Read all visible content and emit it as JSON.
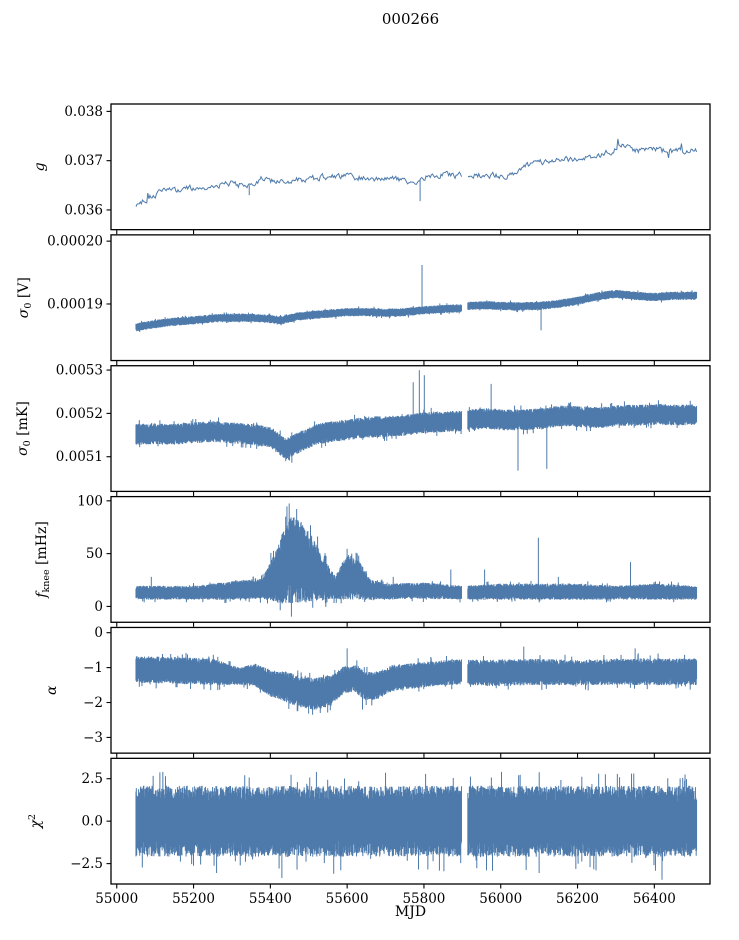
{
  "figure": {
    "title": "000266",
    "xlabel": "MJD",
    "xlim": [
      54985,
      56545
    ],
    "xticks": [
      55000,
      55200,
      55400,
      55600,
      55800,
      56000,
      56200,
      56400
    ],
    "xtick_labels": [
      "55000",
      "55200",
      "55400",
      "55600",
      "55800",
      "56000",
      "56200",
      "56400"
    ],
    "x_range": [
      55050,
      56510
    ],
    "gap": [
      55898,
      55914
    ],
    "line_color": "#4d7aab",
    "axis_color": "#000000",
    "background": "#ffffff"
  },
  "chart_data": [
    {
      "name": "g",
      "type": "line",
      "style": "line",
      "ylabel": "g",
      "ylabel_parts": [
        {
          "t": "g",
          "s": "i"
        }
      ],
      "ylim": [
        0.0356,
        0.03815
      ],
      "yticks": [
        0.036,
        0.037,
        0.038
      ],
      "ytick_labels": [
        "0.036",
        "0.037",
        "0.038"
      ],
      "noise": 6e-05,
      "trend": [
        [
          55050,
          0.03612
        ],
        [
          55080,
          0.03622
        ],
        [
          55120,
          0.03638
        ],
        [
          55160,
          0.03641
        ],
        [
          55200,
          0.03645
        ],
        [
          55250,
          0.03649
        ],
        [
          55300,
          0.03654
        ],
        [
          55340,
          0.03648
        ],
        [
          55380,
          0.03665
        ],
        [
          55420,
          0.03655
        ],
        [
          55460,
          0.0366
        ],
        [
          55500,
          0.03662
        ],
        [
          55540,
          0.03668
        ],
        [
          55580,
          0.03669
        ],
        [
          55620,
          0.03667
        ],
        [
          55660,
          0.03664
        ],
        [
          55700,
          0.03662
        ],
        [
          55740,
          0.03663
        ],
        [
          55775,
          0.03657
        ],
        [
          55810,
          0.03668
        ],
        [
          55845,
          0.03671
        ],
        [
          55880,
          0.0367
        ],
        [
          55920,
          0.03671
        ],
        [
          55960,
          0.0367
        ],
        [
          56000,
          0.03669
        ],
        [
          56040,
          0.03671
        ],
        [
          56070,
          0.03692
        ],
        [
          56110,
          0.03698
        ],
        [
          56150,
          0.037
        ],
        [
          56200,
          0.03705
        ],
        [
          56240,
          0.0371
        ],
        [
          56280,
          0.03716
        ],
        [
          56320,
          0.03733
        ],
        [
          56355,
          0.0372
        ],
        [
          56390,
          0.03726
        ],
        [
          56430,
          0.03719
        ],
        [
          56470,
          0.03721
        ],
        [
          56510,
          0.0372
        ]
      ],
      "spikes": [
        [
          55345,
          0.0363
        ],
        [
          55790,
          0.03618
        ]
      ]
    },
    {
      "name": "sigma0-volt",
      "type": "line",
      "style": "band",
      "ylabel": "sigma_0 [V]",
      "ylabel_parts": [
        {
          "t": "σ",
          "s": "i"
        },
        {
          "t": "0",
          "s": "sub"
        },
        {
          "t": " [V]",
          "s": "n"
        }
      ],
      "ylim": [
        0.000181,
        0.000201
      ],
      "yticks": [
        0.00019,
        0.0002
      ],
      "ytick_labels": [
        "0.00019",
        "0.00020"
      ],
      "noise": 6e-07,
      "trend": [
        [
          55050,
          0.0001863
        ],
        [
          55100,
          0.0001868
        ],
        [
          55150,
          0.0001872
        ],
        [
          55200,
          0.0001874
        ],
        [
          55250,
          0.0001877
        ],
        [
          55300,
          0.0001878
        ],
        [
          55350,
          0.0001878
        ],
        [
          55400,
          0.0001876
        ],
        [
          55430,
          0.0001874
        ],
        [
          55470,
          0.000188
        ],
        [
          55520,
          0.0001883
        ],
        [
          55560,
          0.0001885
        ],
        [
          55600,
          0.0001887
        ],
        [
          55650,
          0.0001887
        ],
        [
          55700,
          0.0001886
        ],
        [
          55750,
          0.0001887
        ],
        [
          55800,
          0.000189
        ],
        [
          55850,
          0.0001892
        ],
        [
          55895,
          0.0001893
        ],
        [
          55915,
          0.0001897
        ],
        [
          55960,
          0.0001898
        ],
        [
          56000,
          0.0001897
        ],
        [
          56050,
          0.0001896
        ],
        [
          56100,
          0.0001897
        ],
        [
          56150,
          0.00019
        ],
        [
          56200,
          0.0001905
        ],
        [
          56250,
          0.0001912
        ],
        [
          56300,
          0.0001916
        ],
        [
          56350,
          0.0001913
        ],
        [
          56400,
          0.0001911
        ],
        [
          56450,
          0.0001913
        ],
        [
          56510,
          0.0001913
        ]
      ],
      "spikes": [
        [
          55795,
          0.0001962
        ],
        [
          56105,
          0.0001858
        ]
      ]
    },
    {
      "name": "sigma0-mk",
      "type": "line",
      "style": "band",
      "ylabel": "sigma_0 [mK]",
      "ylabel_parts": [
        {
          "t": "σ",
          "s": "i"
        },
        {
          "t": "0",
          "s": "sub"
        },
        {
          "t": " [mK]",
          "s": "n"
        }
      ],
      "ylim": [
        0.00502,
        0.00531
      ],
      "yticks": [
        0.0051,
        0.0052,
        0.0053
      ],
      "ytick_labels": [
        "0.0051",
        "0.0052",
        "0.0053"
      ],
      "noise": 2.2e-05,
      "trend": [
        [
          55050,
          0.005152
        ],
        [
          55150,
          0.005152
        ],
        [
          55250,
          0.005158
        ],
        [
          55300,
          0.005155
        ],
        [
          55350,
          0.005152
        ],
        [
          55400,
          0.005145
        ],
        [
          55440,
          0.005118
        ],
        [
          55480,
          0.005135
        ],
        [
          55520,
          0.005152
        ],
        [
          55560,
          0.005158
        ],
        [
          55600,
          0.005162
        ],
        [
          55650,
          0.005168
        ],
        [
          55700,
          0.00517
        ],
        [
          55750,
          0.005172
        ],
        [
          55790,
          0.005178
        ],
        [
          55830,
          0.00518
        ],
        [
          55895,
          0.005182
        ],
        [
          55915,
          0.005185
        ],
        [
          55960,
          0.005188
        ],
        [
          56010,
          0.005185
        ],
        [
          56060,
          0.005185
        ],
        [
          56110,
          0.005188
        ],
        [
          56160,
          0.005195
        ],
        [
          56210,
          0.005192
        ],
        [
          56260,
          0.00519
        ],
        [
          56310,
          0.005195
        ],
        [
          56360,
          0.005196
        ],
        [
          56410,
          0.005198
        ],
        [
          56460,
          0.005196
        ],
        [
          56510,
          0.005198
        ]
      ],
      "spikes": [
        [
          55788,
          0.0053
        ],
        [
          55801,
          0.005288
        ],
        [
          55772,
          0.005272
        ],
        [
          55440,
          0.00509
        ],
        [
          55456,
          0.005086
        ],
        [
          55975,
          0.005268
        ],
        [
          56045,
          0.005068
        ],
        [
          56120,
          0.005072
        ]
      ]
    },
    {
      "name": "fknee",
      "type": "line",
      "style": "band",
      "ylabel": "f_knee [mHz]",
      "ylabel_parts": [
        {
          "t": "f",
          "s": "i"
        },
        {
          "t": "knee",
          "s": "sub"
        },
        {
          "t": " [mHz]",
          "s": "n"
        }
      ],
      "ylim": [
        -15,
        104
      ],
      "yticks": [
        0,
        50,
        100
      ],
      "ytick_labels": [
        "0",
        "50",
        "100"
      ],
      "noise": 7,
      "noise_trend": [
        [
          55050,
          6
        ],
        [
          55200,
          6
        ],
        [
          55300,
          8
        ],
        [
          55380,
          9
        ],
        [
          55420,
          25
        ],
        [
          55450,
          38
        ],
        [
          55480,
          35
        ],
        [
          55510,
          28
        ],
        [
          55540,
          18
        ],
        [
          55570,
          10
        ],
        [
          55600,
          20
        ],
        [
          55630,
          17
        ],
        [
          55660,
          9
        ],
        [
          55700,
          7
        ],
        [
          55800,
          7
        ],
        [
          55900,
          6
        ],
        [
          56000,
          7
        ],
        [
          56100,
          7
        ],
        [
          56200,
          7
        ],
        [
          56300,
          6
        ],
        [
          56400,
          7
        ],
        [
          56510,
          6
        ]
      ],
      "trend": [
        [
          55050,
          13
        ],
        [
          55200,
          13
        ],
        [
          55300,
          15
        ],
        [
          55380,
          17
        ],
        [
          55420,
          30
        ],
        [
          55450,
          45
        ],
        [
          55480,
          42
        ],
        [
          55510,
          35
        ],
        [
          55540,
          25
        ],
        [
          55570,
          18
        ],
        [
          55600,
          28
        ],
        [
          55630,
          25
        ],
        [
          55660,
          16
        ],
        [
          55700,
          14
        ],
        [
          55800,
          15
        ],
        [
          55900,
          13
        ],
        [
          56000,
          14
        ],
        [
          56100,
          14
        ],
        [
          56200,
          14
        ],
        [
          56300,
          13
        ],
        [
          56400,
          14
        ],
        [
          56510,
          13
        ]
      ],
      "spikes": [
        [
          55090,
          28
        ],
        [
          55310,
          25
        ],
        [
          55355,
          28
        ],
        [
          55395,
          33
        ],
        [
          55430,
          68
        ],
        [
          55440,
          85
        ],
        [
          55452,
          80
        ],
        [
          55465,
          75
        ],
        [
          55472,
          60
        ],
        [
          55490,
          72
        ],
        [
          55505,
          65
        ],
        [
          55525,
          55
        ],
        [
          55545,
          48
        ],
        [
          55600,
          48
        ],
        [
          55612,
          50
        ],
        [
          55625,
          42
        ],
        [
          55720,
          28
        ],
        [
          55870,
          35
        ],
        [
          55958,
          35
        ],
        [
          56098,
          65
        ],
        [
          56150,
          28
        ],
        [
          56338,
          42
        ]
      ]
    },
    {
      "name": "alpha",
      "type": "line",
      "style": "band",
      "ylabel": "alpha",
      "ylabel_parts": [
        {
          "t": "α",
          "s": "i"
        }
      ],
      "ylim": [
        -3.45,
        0.15
      ],
      "yticks": [
        -3,
        -2,
        -1,
        0
      ],
      "ytick_labels": [
        "−3",
        "−2",
        "−1",
        "0"
      ],
      "noise": 0.35,
      "noise_trend": [
        [
          55050,
          0.35
        ],
        [
          55250,
          0.35
        ],
        [
          55320,
          0.22
        ],
        [
          55360,
          0.3
        ],
        [
          55440,
          0.4
        ],
        [
          55520,
          0.42
        ],
        [
          55560,
          0.4
        ],
        [
          55600,
          0.35
        ],
        [
          55650,
          0.38
        ],
        [
          55700,
          0.35
        ],
        [
          55800,
          0.33
        ],
        [
          55900,
          0.33
        ],
        [
          56000,
          0.35
        ],
        [
          56200,
          0.33
        ],
        [
          56400,
          0.35
        ],
        [
          56510,
          0.35
        ]
      ],
      "trend": [
        [
          55050,
          -1.05
        ],
        [
          55150,
          -1.08
        ],
        [
          55250,
          -1.12
        ],
        [
          55320,
          -1.25
        ],
        [
          55360,
          -1.2
        ],
        [
          55400,
          -1.45
        ],
        [
          55440,
          -1.55
        ],
        [
          55480,
          -1.7
        ],
        [
          55520,
          -1.75
        ],
        [
          55560,
          -1.65
        ],
        [
          55590,
          -1.35
        ],
        [
          55620,
          -1.3
        ],
        [
          55650,
          -1.55
        ],
        [
          55680,
          -1.5
        ],
        [
          55720,
          -1.3
        ],
        [
          55760,
          -1.25
        ],
        [
          55800,
          -1.2
        ],
        [
          55850,
          -1.15
        ],
        [
          55900,
          -1.12
        ],
        [
          55950,
          -1.15
        ],
        [
          56000,
          -1.15
        ],
        [
          56100,
          -1.12
        ],
        [
          56200,
          -1.15
        ],
        [
          56300,
          -1.12
        ],
        [
          56400,
          -1.12
        ],
        [
          56510,
          -1.12
        ]
      ],
      "spikes": [
        [
          55470,
          -2.25
        ],
        [
          55510,
          -2.35
        ],
        [
          55530,
          -2.3
        ],
        [
          55640,
          -2.2
        ],
        [
          55600,
          -0.45
        ],
        [
          56060,
          -0.4
        ],
        [
          56350,
          -0.45
        ]
      ]
    },
    {
      "name": "chi2",
      "type": "line",
      "style": "band",
      "ylabel": "chi^2",
      "ylabel_parts": [
        {
          "t": "χ",
          "s": "i"
        },
        {
          "t": "2",
          "s": "sup"
        }
      ],
      "ylim": [
        -3.7,
        3.7
      ],
      "yticks": [
        -2.5,
        0,
        2.5
      ],
      "ytick_labels": [
        "−2.5",
        "0.0",
        "2.5"
      ],
      "noise": 1.9,
      "trend": [
        [
          55050,
          0
        ],
        [
          56510,
          0
        ]
      ],
      "spikes": [
        [
          55120,
          2.9
        ],
        [
          55260,
          -3.05
        ],
        [
          55430,
          -3.35
        ],
        [
          55520,
          2.9
        ],
        [
          55565,
          -3.1
        ],
        [
          55700,
          2.85
        ],
        [
          55852,
          -2.95
        ],
        [
          56002,
          2.9
        ],
        [
          56100,
          -3.05
        ],
        [
          56255,
          2.8
        ],
        [
          56420,
          -3.45
        ],
        [
          56480,
          2.75
        ]
      ]
    }
  ]
}
